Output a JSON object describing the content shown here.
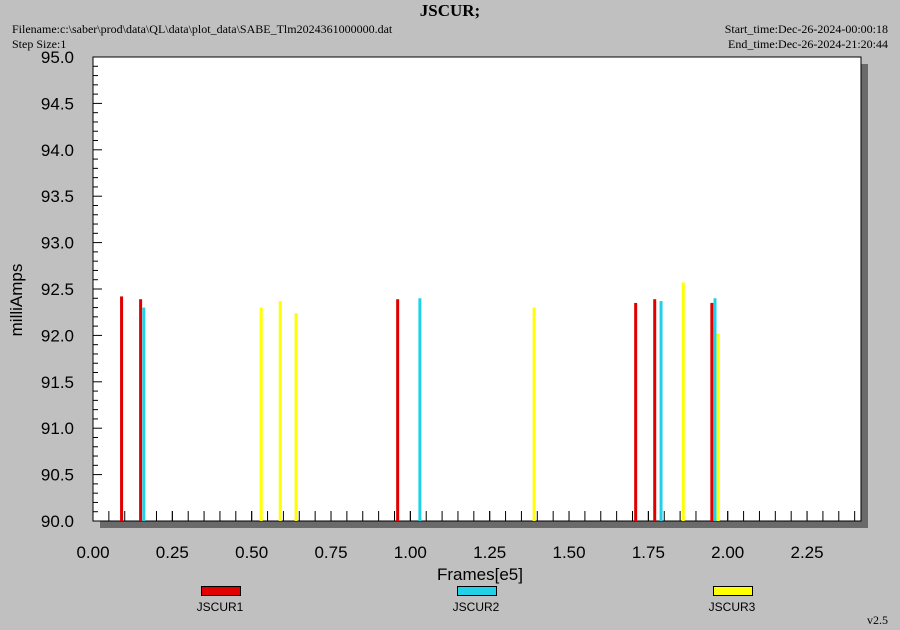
{
  "header": {
    "title": "JSCUR;",
    "filename": "Filename:c:\\saber\\prod\\data\\QL\\data\\plot_data\\SABE_Tlm2024361000000.dat",
    "step_size": "Step Size:1",
    "start_time": "Start_time:Dec-26-2024-00:00:18",
    "end_time": "End_time:Dec-26-2024-21:20:44"
  },
  "footer": {
    "version": "v2.5"
  },
  "chart_data": {
    "type": "bar",
    "title": "JSCUR;",
    "xlabel": "Frames[e5]",
    "ylabel": "milliAmps",
    "xlim": [
      0,
      2.42
    ],
    "ylim": [
      90.0,
      95.0
    ],
    "x_ticks": [
      "0.00",
      "0.25",
      "0.50",
      "0.75",
      "1.00",
      "1.25",
      "1.50",
      "1.75",
      "2.00",
      "2.25"
    ],
    "y_ticks": [
      "90.0",
      "90.5",
      "91.0",
      "91.5",
      "92.0",
      "92.5",
      "93.0",
      "93.5",
      "94.0",
      "94.5",
      "95.0"
    ],
    "grid": false,
    "legend_position": "bottom",
    "series": [
      {
        "name": "JSCUR1",
        "color": "#e00000",
        "points": [
          {
            "x": 0.09,
            "y": 92.42
          },
          {
            "x": 0.15,
            "y": 92.39
          },
          {
            "x": 0.96,
            "y": 92.39
          },
          {
            "x": 1.71,
            "y": 92.35
          },
          {
            "x": 1.77,
            "y": 92.39
          },
          {
            "x": 1.95,
            "y": 92.35
          }
        ]
      },
      {
        "name": "JSCUR2",
        "color": "#22d0e8",
        "points": [
          {
            "x": 0.16,
            "y": 92.3
          },
          {
            "x": 1.03,
            "y": 92.4
          },
          {
            "x": 1.79,
            "y": 92.37
          },
          {
            "x": 1.96,
            "y": 92.4
          }
        ]
      },
      {
        "name": "JSCUR3",
        "color": "#ffff00",
        "points": [
          {
            "x": 0.53,
            "y": 92.3
          },
          {
            "x": 0.59,
            "y": 92.37
          },
          {
            "x": 0.64,
            "y": 92.24
          },
          {
            "x": 1.39,
            "y": 92.3
          },
          {
            "x": 1.86,
            "y": 92.57
          },
          {
            "x": 1.97,
            "y": 92.02
          }
        ]
      }
    ]
  }
}
